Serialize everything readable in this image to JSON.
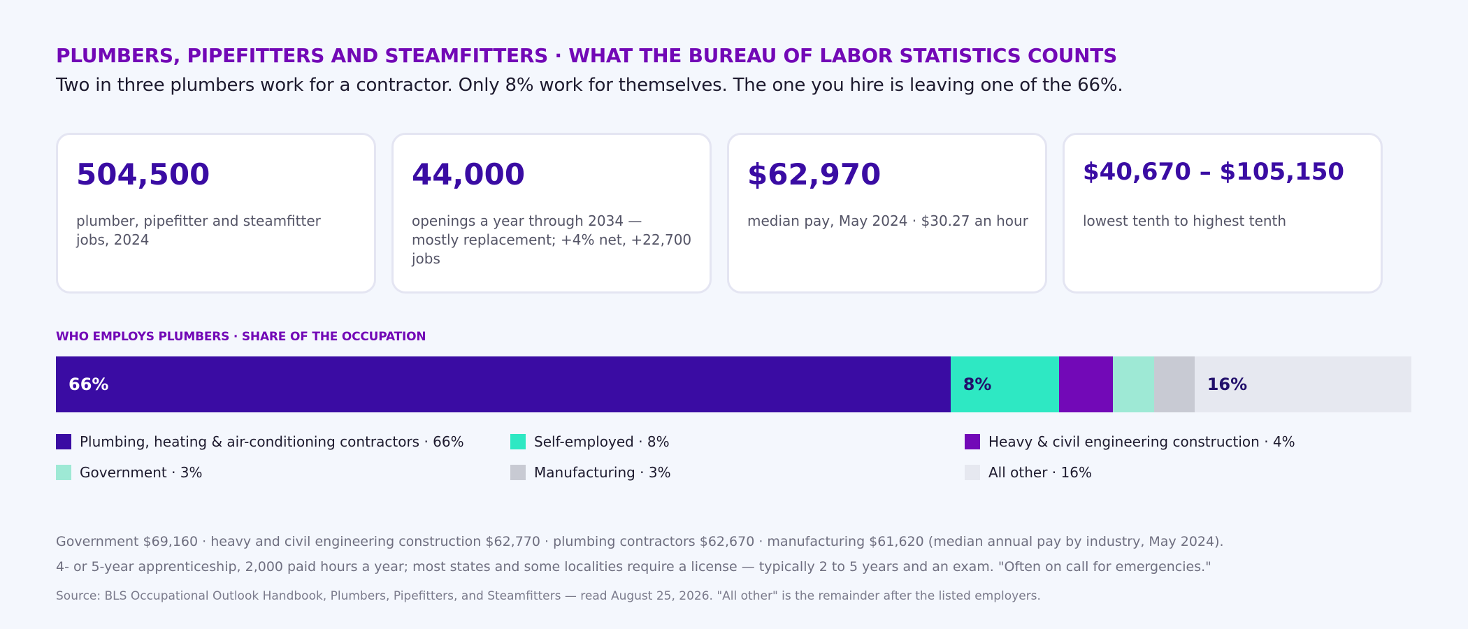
{
  "header": {
    "kicker": "PLUMBERS, PIPEFITTERS AND STEAMFITTERS · WHAT THE BUREAU OF LABOR STATISTICS COUNTS",
    "subtitle": "Two in three plumbers work for a contractor. Only 8% work for themselves. The one you hire is leaving one of the 66%."
  },
  "stats": [
    {
      "value": "504,500",
      "desc": "plumber, pipefitter and steamfitter jobs, 2024"
    },
    {
      "value": "44,000",
      "desc": "openings a year through 2034 — mostly replacement; +4% net, +22,700 jobs"
    },
    {
      "value": "$62,970",
      "desc": "median pay, May 2024 · $30.27 an hour"
    },
    {
      "value": "$40,670 – $105,150",
      "desc": "lowest tenth to highest tenth"
    }
  ],
  "chart_data": {
    "type": "bar",
    "orientation": "horizontal-stacked",
    "title": "WHO EMPLOYS PLUMBERS · SHARE OF THE OCCUPATION",
    "unit": "%",
    "segments": [
      {
        "name": "Plumbing, heating & air-conditioning contractors",
        "value": 66,
        "label": "66%",
        "legend": "Plumbing, heating & air-conditioning contractors · 66%",
        "color": "#3a0ca3",
        "label_color": "#ffffff"
      },
      {
        "name": "Self-employed",
        "value": 8,
        "label": "8%",
        "legend": "Self-employed · 8%",
        "color": "#2ee8c3",
        "label_color": "#22106b"
      },
      {
        "name": "Heavy & civil engineering construction",
        "value": 4,
        "label": "",
        "legend": "Heavy & civil engineering construction · 4%",
        "color": "#7209b7",
        "label_color": "#ffffff"
      },
      {
        "name": "Government",
        "value": 3,
        "label": "",
        "legend": "Government · 3%",
        "color": "#9ee9d5",
        "label_color": "#22106b"
      },
      {
        "name": "Manufacturing",
        "value": 3,
        "label": "",
        "legend": "Manufacturing · 3%",
        "color": "#c8cad3",
        "label_color": "#22106b"
      },
      {
        "name": "All other",
        "value": 16,
        "label": "16%",
        "legend": "All other · 16%",
        "color": "#e6e8f0",
        "label_color": "#22106b"
      }
    ],
    "legend_placement": "bottom"
  },
  "notes": {
    "line1": "Government $69,160 · heavy and civil engineering construction $62,770 · plumbing contractors $62,670 · manufacturing $61,620 (median annual pay by industry, May 2024).",
    "line2": "4- or 5-year apprenticeship, 2,000 paid hours a year; most states and some localities require a license — typically 2 to 5 years and an exam. \"Often on call for emergencies.\""
  },
  "source": "Source: BLS Occupational Outlook Handbook, Plumbers, Pipefitters, and Steamfitters — read August 25, 2026. \"All other\" is the remainder after the listed employers."
}
